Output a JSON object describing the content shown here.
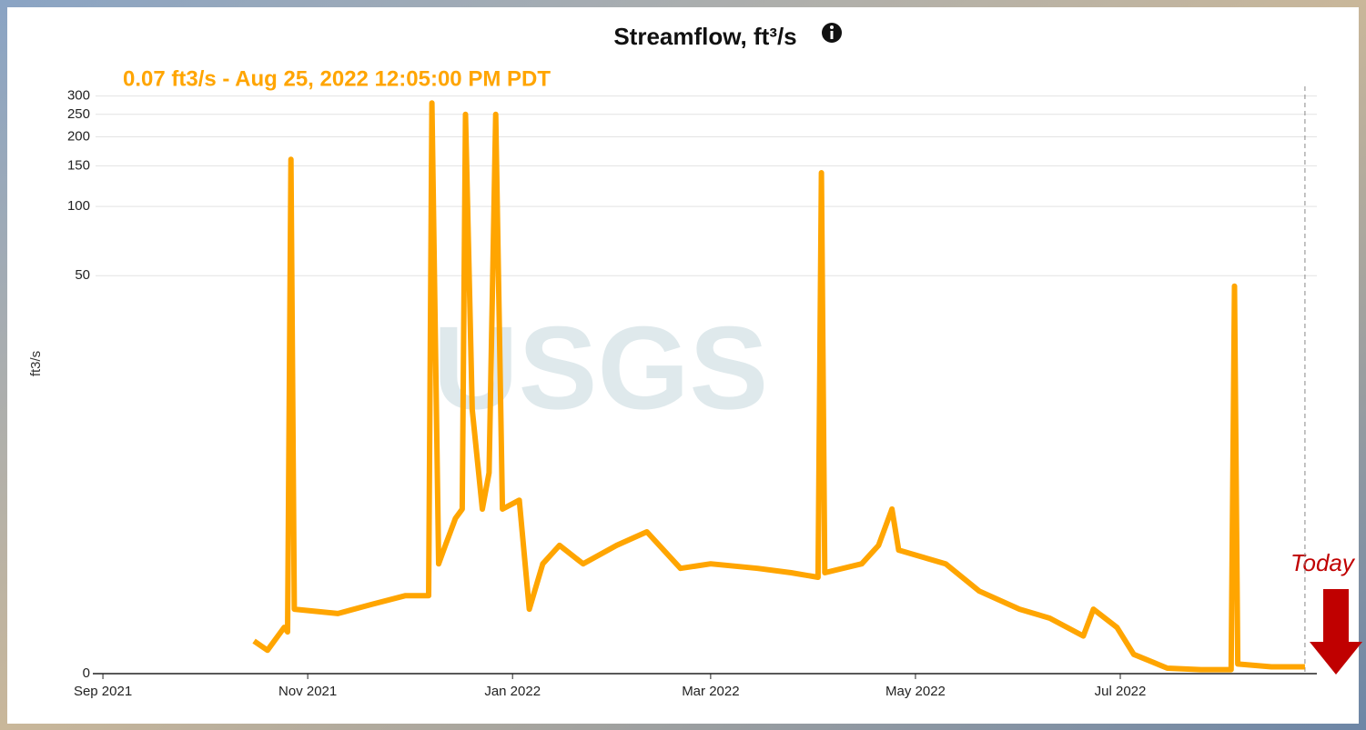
{
  "chart_data": {
    "type": "line",
    "title": "Streamflow, ft³/s",
    "subtitle": "0.07 ft3/s - Aug 25, 2022 12:05:00 PM PDT",
    "y_label": "ft3/s",
    "annotation": "Today",
    "watermark": "USGS",
    "color": "#ffa500",
    "yscale": "symlog",
    "grid": true,
    "cursor_x": "2022-08-25",
    "xlim": [
      "2021-08-29",
      "2022-08-28"
    ],
    "xticks": [
      {
        "value": "2021-09-01",
        "label": "Sep 2021"
      },
      {
        "value": "2021-11-01",
        "label": "Nov 2021"
      },
      {
        "value": "2022-01-01",
        "label": "Jan 2022"
      },
      {
        "value": "2022-03-01",
        "label": "Mar 2022"
      },
      {
        "value": "2022-05-01",
        "label": "May 2022"
      },
      {
        "value": "2022-07-01",
        "label": "Jul 2022"
      }
    ],
    "ylim": [
      0,
      330
    ],
    "yticks": [
      0,
      50,
      100,
      150,
      200,
      250,
      300
    ],
    "x": [
      "2021-10-16",
      "2021-10-20",
      "2021-10-25",
      "2021-10-26",
      "2021-10-27",
      "2021-10-28",
      "2021-11-10",
      "2021-11-20",
      "2021-11-30",
      "2021-12-07",
      "2021-12-08",
      "2021-12-10",
      "2021-12-12",
      "2021-12-15",
      "2021-12-17",
      "2021-12-18",
      "2021-12-20",
      "2021-12-23",
      "2021-12-25",
      "2021-12-27",
      "2021-12-29",
      "2022-01-03",
      "2022-01-06",
      "2022-01-10",
      "2022-01-15",
      "2022-01-22",
      "2022-02-01",
      "2022-02-10",
      "2022-02-20",
      "2022-03-01",
      "2022-03-15",
      "2022-03-25",
      "2022-04-02",
      "2022-04-03",
      "2022-04-04",
      "2022-04-15",
      "2022-04-20",
      "2022-04-24",
      "2022-04-26",
      "2022-05-10",
      "2022-05-20",
      "2022-06-01",
      "2022-06-10",
      "2022-06-20",
      "2022-06-23",
      "2022-06-30",
      "2022-07-05",
      "2022-07-15",
      "2022-07-25",
      "2022-08-03",
      "2022-08-04",
      "2022-08-05",
      "2022-08-15",
      "2022-08-25"
    ],
    "values": [
      0.38,
      0.26,
      0.58,
      0.51,
      160,
      0.89,
      0.81,
      0.98,
      1.16,
      1.16,
      280,
      1.96,
      2.55,
      3.64,
      4.08,
      250,
      12.6,
      4.08,
      6.27,
      250,
      4.08,
      4.55,
      0.89,
      1.96,
      2.55,
      1.96,
      2.55,
      3.06,
      1.83,
      1.96,
      1.83,
      1.71,
      1.59,
      140,
      1.71,
      1.96,
      2.55,
      4.08,
      2.39,
      1.96,
      1.26,
      0.89,
      0.73,
      0.45,
      0.89,
      0.58,
      0.21,
      0.055,
      0.04,
      0.04,
      45,
      0.1,
      0.07,
      0.07
    ]
  }
}
